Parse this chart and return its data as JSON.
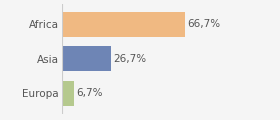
{
  "categories": [
    "Africa",
    "Asia",
    "Europa"
  ],
  "values": [
    66.7,
    26.7,
    6.7
  ],
  "labels": [
    "66,7%",
    "26,7%",
    "6,7%"
  ],
  "bar_colors": [
    "#f0b982",
    "#6e85b5",
    "#b5c98e"
  ],
  "background_color": "#f5f5f5",
  "xlim": [
    0,
    100
  ],
  "bar_height": 0.72,
  "label_fontsize": 7.5,
  "tick_fontsize": 7.5,
  "label_color": "#555555"
}
